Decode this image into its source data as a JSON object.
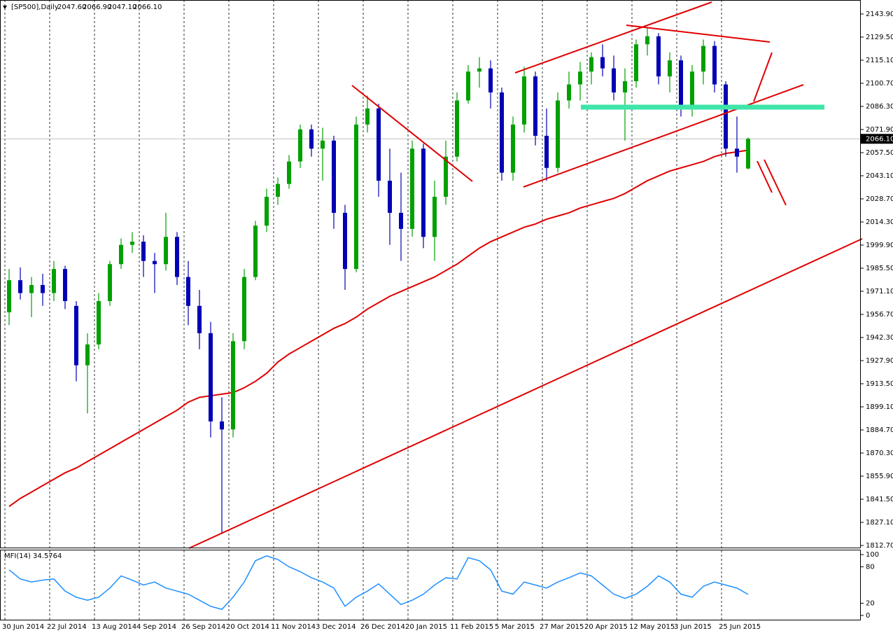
{
  "chart_data": [
    {
      "type": "candlestick",
      "symbol": "[SP500],Daily",
      "ohlc_labels": [
        "2047.60",
        "2066.90",
        "2047.10",
        "2066.10"
      ],
      "categories": [
        "30 Jun 2014",
        null,
        null,
        null,
        "22 Jul 2014",
        null,
        null,
        null,
        "13 Aug 2014",
        null,
        null,
        null,
        "4 Sep 2014",
        null,
        null,
        null,
        "26 Sep 2014",
        null,
        null,
        null,
        "20 Oct 2014",
        null,
        null,
        null,
        "11 Nov 2014",
        null,
        null,
        null,
        "3 Dec 2014",
        null,
        null,
        null,
        "26 Dec 2014",
        null,
        null,
        null,
        "20 Jan 2015",
        null,
        null,
        null,
        "11 Feb 2015",
        null,
        null,
        null,
        "5 Mar 2015",
        null,
        null,
        null,
        "27 Mar 2015",
        null,
        null,
        null,
        "20 Apr 2015",
        null,
        null,
        null,
        "12 May 2015",
        null,
        null,
        null,
        "3 Jun 2015",
        null,
        null,
        null,
        "25 Jun 2015",
        null,
        null
      ],
      "open": [
        1958,
        1978,
        1970,
        1975,
        1970,
        1985,
        1962,
        1925,
        1938,
        1965,
        1988,
        2000,
        2002,
        1990,
        1988,
        2005,
        1980,
        1962,
        1945,
        1890,
        1885,
        1940,
        1980,
        2012,
        2030,
        2038,
        2052,
        2072,
        2060,
        2065,
        2020,
        1985,
        2075,
        2085,
        2040,
        2020,
        2010,
        2060,
        2005,
        2030,
        2055,
        2090,
        2108,
        2110,
        2095,
        2045,
        2075,
        2105,
        2068,
        2048,
        2090,
        2100,
        2108,
        2117,
        2110,
        2095,
        2102,
        2125,
        2130,
        2105,
        2115,
        2085,
        2108,
        2124,
        2100,
        2060,
        2047.6
      ],
      "high": [
        1985,
        1986,
        1980,
        1982,
        1990,
        1987,
        1965,
        1945,
        1970,
        1990,
        2004,
        2008,
        2006,
        1995,
        2020,
        2008,
        1990,
        1972,
        1952,
        1905,
        1945,
        1985,
        2015,
        2035,
        2042,
        2056,
        2075,
        2075,
        2073,
        2068,
        2025,
        2080,
        2093,
        2088,
        2060,
        2045,
        2065,
        2063,
        2040,
        2065,
        2095,
        2112,
        2117,
        2115,
        2098,
        2080,
        2111,
        2108,
        2085,
        2095,
        2108,
        2114,
        2120,
        2125,
        2118,
        2110,
        2128,
        2135,
        2132,
        2120,
        2118,
        2112,
        2128,
        2127,
        2102,
        2080,
        2066.9
      ],
      "low": [
        1950,
        1966,
        1955,
        1962,
        1965,
        1960,
        1915,
        1895,
        1935,
        1962,
        1985,
        1995,
        1980,
        1970,
        1984,
        1975,
        1950,
        1935,
        1880,
        1820,
        1880,
        1935,
        1978,
        2008,
        2025,
        2035,
        2048,
        2055,
        2040,
        2010,
        1972,
        1983,
        2070,
        2030,
        2000,
        1990,
        2005,
        1998,
        1990,
        2025,
        2052,
        2088,
        2098,
        2085,
        2040,
        2040,
        2070,
        2062,
        2040,
        2045,
        2085,
        2090,
        2100,
        2105,
        2090,
        2065,
        2098,
        2118,
        2100,
        2095,
        2080,
        2080,
        2100,
        2095,
        2055,
        2045,
        2047.1
      ],
      "close": [
        1978,
        1970,
        1975,
        1970,
        1985,
        1965,
        1925,
        1938,
        1965,
        1988,
        2000,
        2002,
        1990,
        1988,
        2005,
        1980,
        1962,
        1945,
        1890,
        1885,
        1940,
        1980,
        2012,
        2030,
        2038,
        2052,
        2072,
        2060,
        2065,
        2020,
        1985,
        2075,
        2085,
        2040,
        2020,
        2010,
        2060,
        2005,
        2030,
        2055,
        2090,
        2108,
        2110,
        2095,
        2045,
        2075,
        2105,
        2068,
        2048,
        2090,
        2100,
        2108,
        2117,
        2110,
        2095,
        2102,
        2125,
        2130,
        2105,
        2115,
        2085,
        2108,
        2124,
        2100,
        2060,
        2055,
        2066.1
      ],
      "up_color": "#00a000",
      "down_color": "#0000b4",
      "overlay": {
        "color": "#e00000",
        "values": [
          1837,
          1842,
          1846,
          1850,
          1854,
          1858,
          1861,
          1865,
          1869,
          1873,
          1877,
          1881,
          1885,
          1889,
          1893,
          1897,
          1902,
          1905,
          1906,
          1907,
          1908,
          1911,
          1915,
          1920,
          1927,
          1932,
          1936,
          1940,
          1944,
          1948,
          1951,
          1955,
          1960,
          1964,
          1968,
          1971,
          1974,
          1977,
          1980,
          1984,
          1988,
          1993,
          1998,
          2002,
          2005,
          2008,
          2011,
          2013,
          2016,
          2018,
          2020,
          2023,
          2025,
          2027,
          2029,
          2032,
          2036,
          2040,
          2043,
          2046,
          2048,
          2050,
          2052,
          2055,
          2057,
          2058,
          2059
        ]
      },
      "last_price": {
        "value": 2066.1,
        "label": "2066.10"
      },
      "ylim": [
        1811.4,
        2151.3
      ],
      "yticks": [
        {
          "value": 2143.9,
          "label": "2143.90"
        },
        {
          "value": 2129.5,
          "label": "2129.50"
        },
        {
          "value": 2115.1,
          "label": "2115.10"
        },
        {
          "value": 2100.7,
          "label": "2100.70"
        },
        {
          "value": 2086.3,
          "label": "2086.30"
        },
        {
          "value": 2071.9,
          "label": "2071.90"
        },
        {
          "value": 2057.5,
          "label": "2057.50"
        },
        {
          "value": 2043.1,
          "label": "2043.10"
        },
        {
          "value": 2028.7,
          "label": "2028.70"
        },
        {
          "value": 2014.3,
          "label": "2014.30"
        },
        {
          "value": 1999.9,
          "label": "1999.90"
        },
        {
          "value": 1985.5,
          "label": "1985.50"
        },
        {
          "value": 1971.1,
          "label": "1971.10"
        },
        {
          "value": 1956.7,
          "label": "1956.70"
        },
        {
          "value": 1942.3,
          "label": "1942.30"
        },
        {
          "value": 1927.9,
          "label": "1927.90"
        },
        {
          "value": 1913.5,
          "label": "1913.50"
        },
        {
          "value": 1899.1,
          "label": "1899.10"
        },
        {
          "value": 1884.7,
          "label": "1884.70"
        },
        {
          "value": 1870.3,
          "label": "1870.30"
        },
        {
          "value": 1855.9,
          "label": "1855.90"
        },
        {
          "value": 1841.5,
          "label": "1841.50"
        },
        {
          "value": 1827.1,
          "label": "1827.10"
        },
        {
          "value": 1812.7,
          "label": "1812.70"
        }
      ],
      "grid": true
    },
    {
      "type": "line",
      "title": "MFI(14) 34.5764",
      "color": "#1e90ff",
      "values": [
        75,
        60,
        55,
        58,
        60,
        40,
        30,
        25,
        30,
        45,
        65,
        58,
        50,
        55,
        45,
        40,
        35,
        25,
        15,
        10,
        30,
        55,
        90,
        98,
        92,
        80,
        72,
        62,
        55,
        45,
        15,
        30,
        40,
        52,
        35,
        18,
        25,
        35,
        50,
        62,
        60,
        95,
        90,
        75,
        40,
        35,
        55,
        50,
        45,
        55,
        62,
        70,
        65,
        50,
        35,
        28,
        35,
        48,
        65,
        55,
        35,
        30,
        48,
        55,
        50,
        45,
        34.5764
      ],
      "ylim": [
        -7,
        107
      ],
      "yticks": [
        0,
        20,
        80,
        100
      ]
    }
  ]
}
